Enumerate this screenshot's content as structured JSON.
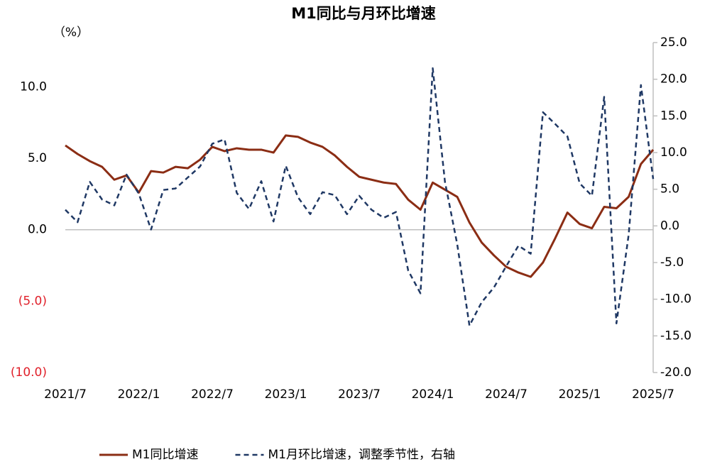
{
  "chart_data": {
    "type": "line",
    "title": "M1同比与月环比增速",
    "y_label": "（%）",
    "categories": [
      "2021/7",
      null,
      null,
      null,
      null,
      null,
      "2022/1",
      null,
      null,
      null,
      null,
      null,
      "2022/7",
      null,
      null,
      null,
      null,
      null,
      "2023/1",
      null,
      null,
      null,
      null,
      null,
      "2023/7",
      null,
      null,
      null,
      null,
      null,
      "2024/1",
      null,
      null,
      null,
      null,
      null,
      "2024/7",
      null,
      null,
      null,
      null,
      null,
      "2025/1",
      null,
      null,
      null,
      null,
      null,
      "2025/7"
    ],
    "series": [
      {
        "name": "M1同比增速",
        "color": "#8b2d14",
        "dash": false,
        "values": [
          5.9,
          5.3,
          4.8,
          4.4,
          3.5,
          3.8,
          2.6,
          4.1,
          4.0,
          4.4,
          4.3,
          4.9,
          5.8,
          5.5,
          5.7,
          5.6,
          5.6,
          5.4,
          6.6,
          6.5,
          6.1,
          5.8,
          5.2,
          4.4,
          3.7,
          3.5,
          3.3,
          3.2,
          2.1,
          1.4,
          3.3,
          2.8,
          2.3,
          0.5,
          -0.9,
          -1.8,
          -2.6,
          -3.0,
          -3.3,
          -2.3,
          -0.6,
          1.2,
          0.4,
          0.1,
          1.6,
          1.5,
          2.3,
          4.6,
          5.6
        ]
      },
      {
        "name": "M1月环比增速，调整季节性，右轴",
        "color": "#1f3864",
        "dash": true,
        "axis": "y2",
        "values": [
          2.2,
          0.5,
          6.0,
          3.6,
          2.8,
          7.0,
          4.4,
          -0.5,
          4.9,
          5.1,
          6.6,
          8.1,
          11.2,
          11.8,
          4.5,
          2.3,
          6.1,
          0.6,
          8.2,
          3.9,
          1.6,
          4.6,
          4.2,
          1.6,
          4.1,
          2.2,
          1.1,
          1.9,
          -6.1,
          -9.2,
          21.5,
          6.0,
          -2.5,
          -13.6,
          -10.4,
          -8.4,
          -5.5,
          -2.7,
          -3.8,
          15.5,
          13.9,
          12.2,
          5.8,
          4.1,
          17.6,
          -13.3,
          -1.2,
          19.2,
          6.4
        ]
      }
    ],
    "ylim": [
      -10,
      13.1
    ],
    "yticks": [
      {
        "value": 10,
        "label": "10.0"
      },
      {
        "value": 5,
        "label": "5.0"
      },
      {
        "value": 0,
        "label": "0.0"
      },
      {
        "value": -5,
        "label": "(5.0)"
      },
      {
        "value": -10,
        "label": "(10.0)"
      }
    ],
    "y2lim": [
      -20,
      25
    ],
    "y2ticks": [
      {
        "value": 25,
        "label": "25.0"
      },
      {
        "value": 20,
        "label": "20.0"
      },
      {
        "value": 15,
        "label": "15.0"
      },
      {
        "value": 10,
        "label": "10.0"
      },
      {
        "value": 5,
        "label": "5.0"
      },
      {
        "value": 0,
        "label": "0.0"
      },
      {
        "value": -5,
        "label": "-5.0"
      },
      {
        "value": -10,
        "label": "-10.0"
      },
      {
        "value": -15,
        "label": "-15.0"
      },
      {
        "value": -20,
        "label": "-20.0"
      }
    ],
    "grid": false,
    "legend": "bottom"
  }
}
